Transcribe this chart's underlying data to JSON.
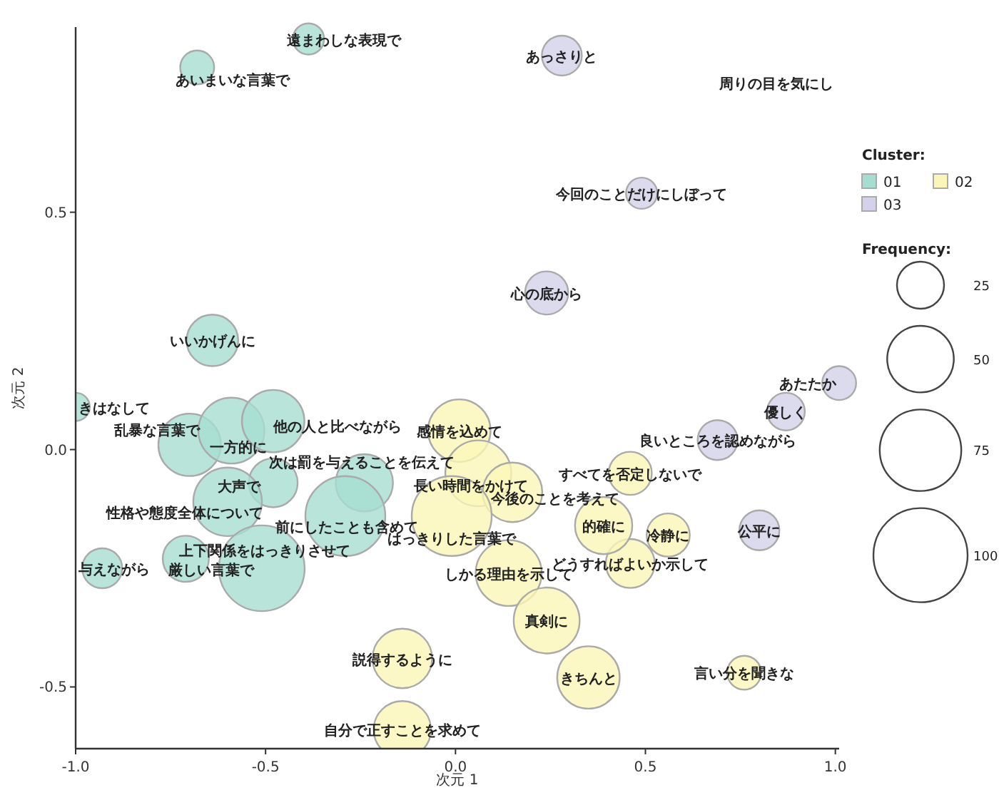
{
  "chart_data": {
    "type": "bubble",
    "xlabel": "次元 1",
    "ylabel": "次元 2",
    "legend_title": "Cluster:",
    "legend": "right",
    "marker": "circle",
    "grid": false,
    "xlim": [
      -1.0,
      1.01
    ],
    "ylim": [
      -0.63,
      0.89
    ],
    "xticks": [
      {
        "value": -1.0,
        "label": "-1.0"
      },
      {
        "value": -0.5,
        "label": "-0.5"
      },
      {
        "value": 0.0,
        "label": "0.0"
      },
      {
        "value": 0.5,
        "label": "0.5"
      },
      {
        "value": 1.0,
        "label": "1.0"
      }
    ],
    "yticks": [
      {
        "value": -0.5,
        "label": "-0.5"
      },
      {
        "value": 0.0,
        "label": "0.0"
      },
      {
        "value": 0.5,
        "label": "0.5"
      }
    ],
    "size_legend": [
      25,
      50,
      75,
      100
    ],
    "series": [
      {
        "name": "01",
        "color": "#a6ddd1",
        "x": [
          -0.387,
          -0.68,
          -0.64,
          -1.0,
          -0.7,
          -0.59,
          -0.48,
          -0.24,
          -0.48,
          -0.6,
          -0.51,
          -0.29,
          -0.71,
          -0.93
        ],
        "values": [
          0.865,
          0.805,
          0.23,
          0.09,
          0.01,
          0.04,
          0.06,
          -0.07,
          -0.07,
          -0.11,
          -0.25,
          -0.14,
          -0.23,
          -0.25
        ],
        "sizes": [
          11,
          13,
          30,
          9,
          44,
          49,
          44,
          37,
          27,
          53,
          83,
          72,
          24,
          18
        ]
      },
      {
        "name": "02",
        "color": "#fbf6b7",
        "x": [
          0.01,
          0.06,
          0.15,
          -0.01,
          0.14,
          0.24,
          0.35,
          -0.14,
          -0.14,
          0.46,
          0.39,
          0.56,
          0.46,
          0.76
        ],
        "values": [
          0.04,
          -0.05,
          -0.09,
          -0.14,
          -0.26,
          -0.36,
          -0.48,
          -0.44,
          -0.59,
          -0.24,
          -0.16,
          -0.18,
          -0.05,
          -0.47
        ],
        "sizes": [
          44,
          49,
          40,
          72,
          49,
          49,
          44,
          40,
          37,
          27,
          37,
          21,
          21,
          13
        ]
      },
      {
        "name": "03",
        "color": "#d3d2ea",
        "x": [
          0.28,
          0.49,
          0.24,
          1.01,
          0.87,
          0.69,
          0.8
        ],
        "values": [
          0.83,
          0.54,
          0.33,
          0.14,
          0.08,
          0.02,
          -0.17
        ],
        "sizes": [
          18,
          11,
          21,
          13,
          16,
          18,
          18
        ]
      }
    ],
    "annotations": [
      "周りの目を気にし",
      "Frequency:",
      {
        "text": "遠まわしな表現で",
        "x": -0.387,
        "y": 0.865
      },
      {
        "text": "あいまいな言葉で",
        "x": -0.68,
        "y": 0.805
      },
      {
        "text": "いいかげんに",
        "x": -0.64,
        "y": 0.23
      },
      {
        "text": "きはなして",
        "x": -1.0,
        "y": 0.09
      },
      {
        "text": "乱暴な言葉で",
        "x": -0.7,
        "y": 0.01
      },
      {
        "text": "一方的に",
        "x": -0.59,
        "y": 0.04
      },
      {
        "text": "他の人と比べながら",
        "x": -0.48,
        "y": 0.06
      },
      {
        "text": "次は罰を与えることを伝えて",
        "x": -0.24,
        "y": -0.07
      },
      {
        "text": "大声で",
        "x": -0.48,
        "y": -0.07
      },
      {
        "text": "性格や態度全体について",
        "x": -0.6,
        "y": -0.11
      },
      {
        "text": "上下関係をはっきりさせて",
        "x": -0.51,
        "y": -0.25
      },
      {
        "text": "前にしたことも含めて",
        "x": -0.29,
        "y": -0.14
      },
      {
        "text": "厳しい言葉で",
        "x": -0.71,
        "y": -0.23
      },
      {
        "text": "与えながら",
        "x": -0.93,
        "y": -0.25
      },
      {
        "text": "感情を込めて",
        "x": 0.01,
        "y": 0.04
      },
      {
        "text": "長い時間をかけて",
        "x": 0.06,
        "y": -0.05
      },
      {
        "text": "今後のことを考えて",
        "x": 0.15,
        "y": -0.09
      },
      {
        "text": "はっきりした言葉で",
        "x": -0.01,
        "y": -0.14
      },
      {
        "text": "しかる理由を示して",
        "x": 0.14,
        "y": -0.26
      },
      {
        "text": "真剣に",
        "x": 0.24,
        "y": -0.36
      },
      {
        "text": "きちんと",
        "x": 0.35,
        "y": -0.48
      },
      {
        "text": "説得するように",
        "x": -0.14,
        "y": -0.44
      },
      {
        "text": "自分で正すことを求めて",
        "x": -0.14,
        "y": -0.59
      },
      {
        "text": "どうすればよいか示して",
        "x": 0.46,
        "y": -0.24
      },
      {
        "text": "的確に",
        "x": 0.39,
        "y": -0.16
      },
      {
        "text": "冷静に",
        "x": 0.56,
        "y": -0.18
      },
      {
        "text": "すべてを否定しないで",
        "x": 0.46,
        "y": -0.05
      },
      {
        "text": "言い分を聞きな",
        "x": 0.76,
        "y": -0.47
      },
      {
        "text": "あっさりと",
        "x": 0.28,
        "y": 0.83
      },
      {
        "text": "今回のことだけにしぼって",
        "x": 0.49,
        "y": 0.54
      },
      {
        "text": "心の底から",
        "x": 0.24,
        "y": 0.33
      },
      {
        "text": "あたたか",
        "x": 1.01,
        "y": 0.14
      },
      {
        "text": "優しく",
        "x": 0.87,
        "y": 0.08
      },
      {
        "text": "良いところを認めながら",
        "x": 0.69,
        "y": 0.02
      },
      {
        "text": "公平に",
        "x": 0.8,
        "y": -0.17
      }
    ]
  }
}
